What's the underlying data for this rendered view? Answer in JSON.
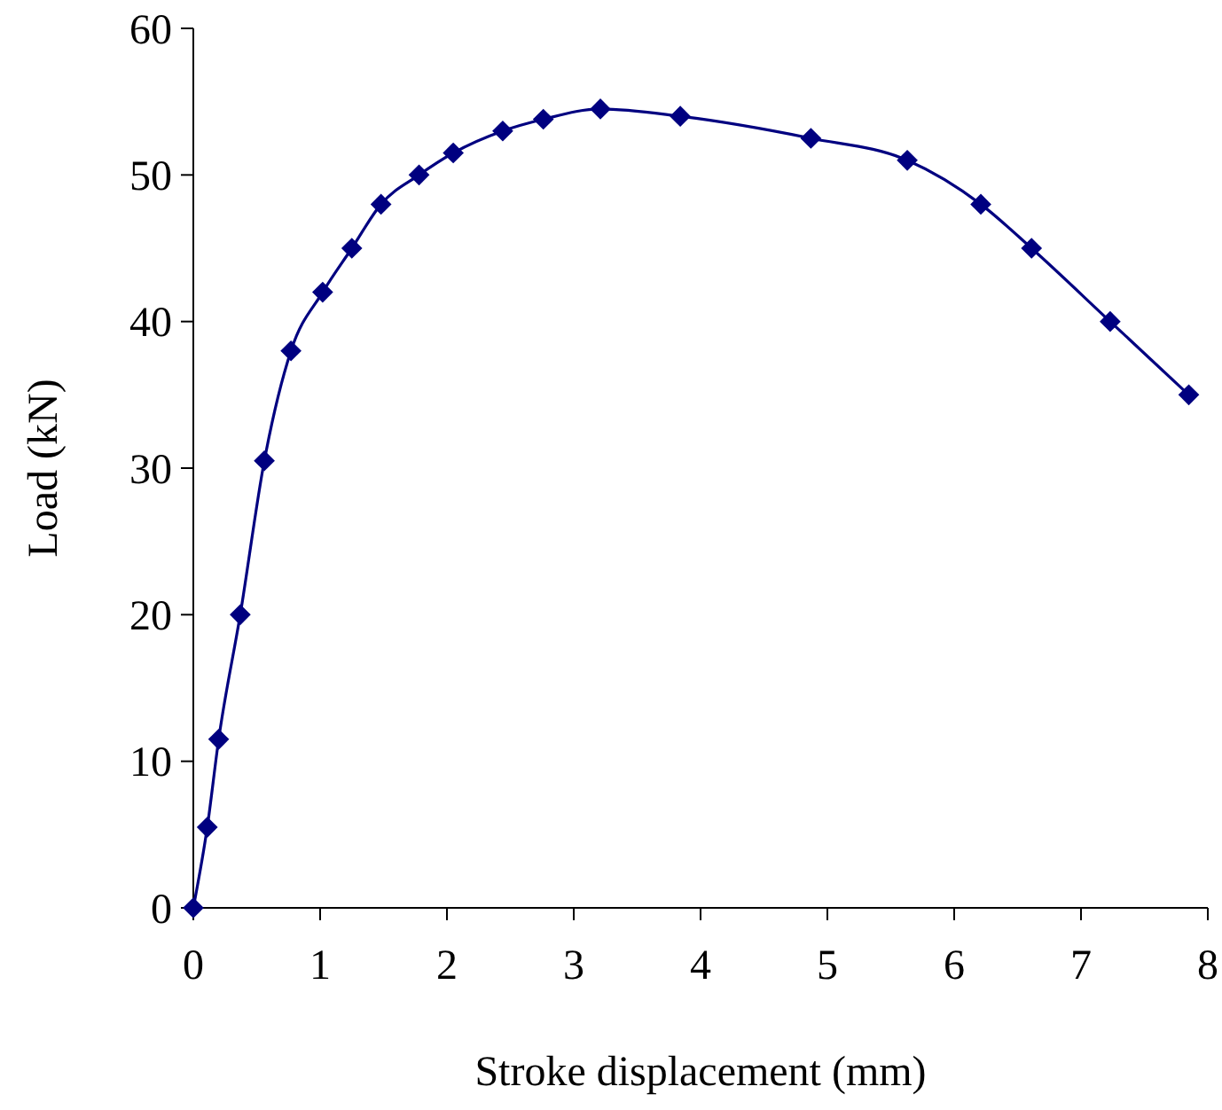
{
  "chart_data": {
    "type": "line",
    "xlabel": "Stroke displacement (mm)",
    "ylabel": "Load (kN)",
    "xlim": [
      0,
      8
    ],
    "xticks": [
      0,
      1,
      2,
      3,
      4,
      5,
      6,
      7,
      8
    ],
    "ylim": [
      0,
      60
    ],
    "yticks": [
      0,
      10,
      20,
      30,
      40,
      50,
      60
    ],
    "grid": false,
    "marker": "diamond",
    "line_style": "solid",
    "series": [
      {
        "color": "#000080",
        "x": [
          0,
          0.11,
          0.2,
          0.37,
          0.56,
          0.77,
          1.02,
          1.25,
          1.48,
          1.78,
          2.05,
          2.44,
          2.76,
          3.21,
          3.84,
          4.87,
          5.63,
          6.21,
          6.61,
          7.23,
          7.85
        ],
        "values": [
          0,
          5.5,
          11.5,
          20,
          30.5,
          38,
          42,
          45,
          48,
          50,
          51.5,
          53,
          53.8,
          54.5,
          54,
          52.5,
          51,
          48,
          45,
          40,
          35
        ]
      }
    ]
  }
}
